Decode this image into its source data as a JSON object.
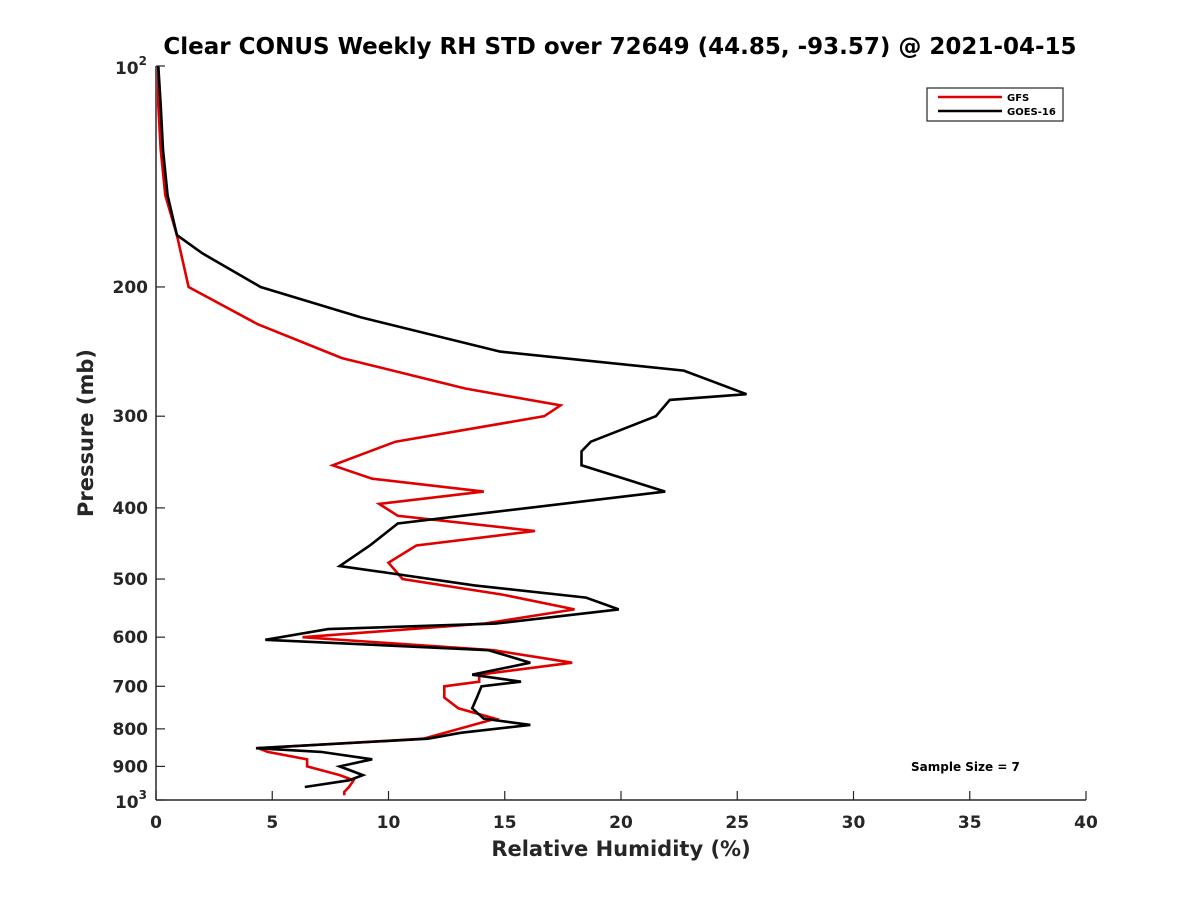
{
  "chart_data": {
    "type": "line",
    "title": "Clear CONUS Weekly RH STD over 72649 (44.85, -93.57) @ 2021-04-15",
    "xlabel": "Relative Humidity (%)",
    "ylabel": "Pressure (mb)",
    "xlim": [
      0,
      40
    ],
    "ylim": [
      100,
      1000
    ],
    "y_scale": "log",
    "y_reversed": true,
    "x_ticks": [
      "0",
      "5",
      "10",
      "15",
      "20",
      "25",
      "30",
      "35",
      "40"
    ],
    "y_ticks": [
      {
        "value": 100,
        "base": "10",
        "exp": "2"
      },
      {
        "value": 200,
        "label": "200"
      },
      {
        "value": 300,
        "label": "300"
      },
      {
        "value": 400,
        "label": "400"
      },
      {
        "value": 500,
        "label": "500"
      },
      {
        "value": 600,
        "label": "600"
      },
      {
        "value": 700,
        "label": "700"
      },
      {
        "value": 800,
        "label": "800"
      },
      {
        "value": 900,
        "label": "900"
      },
      {
        "value": 1000,
        "base": "10",
        "exp": "3"
      }
    ],
    "grid": false,
    "legend_position": "top-right",
    "annotation": "Sample Size = 7",
    "series": [
      {
        "name": "GFS",
        "color": "#e00000",
        "x": [
          0.1,
          0.1,
          0.2,
          0.4,
          0.9,
          1.4,
          4.4,
          8,
          13.3,
          17.4,
          16.7,
          10.3,
          7.6,
          9.3,
          14.1,
          9.6,
          10.4,
          16.3,
          11.2,
          10,
          10.6,
          14.9,
          18,
          14.1,
          6.3,
          14.5,
          17.9,
          13.9,
          13.9,
          12.4,
          12.4,
          13,
          14.6,
          11.5,
          4.4,
          4.8,
          6.5,
          6.5,
          7.9,
          8.5,
          8.3,
          8.1,
          8.1
        ],
        "y": [
          100,
          113,
          130,
          150,
          170,
          200,
          225,
          250,
          275,
          290,
          300,
          325,
          350,
          365,
          380,
          395,
          410,
          430,
          450,
          475,
          500,
          525,
          550,
          575,
          600,
          625,
          650,
          675,
          690,
          700,
          725,
          750,
          775,
          825,
          850,
          860,
          880,
          900,
          925,
          940,
          960,
          975,
          985
        ]
      },
      {
        "name": "GOES-16",
        "color": "#000000",
        "x": [
          0.1,
          0.2,
          0.3,
          0.5,
          0.9,
          2.0,
          4.5,
          8.8,
          14.8,
          22.7,
          25.4,
          22.1,
          21.5,
          18.7,
          18.3,
          18.3,
          21.9,
          10.4,
          9.2,
          7.9,
          9.9,
          13.7,
          18.5,
          19.9,
          14.6,
          7.4,
          4.7,
          14.3,
          16.1,
          13.6,
          15.7,
          14.0,
          13.8,
          13.6,
          14.1,
          16.1,
          13.1,
          11.7,
          4.3,
          7.1,
          9.3,
          7.9,
          8.9,
          8.3,
          6.4
        ],
        "y": [
          100,
          113,
          130,
          150,
          170,
          180,
          200,
          220,
          245,
          260,
          280,
          285,
          300,
          325,
          335,
          350,
          380,
          420,
          450,
          480,
          490,
          510,
          530,
          550,
          575,
          585,
          605,
          625,
          650,
          675,
          690,
          700,
          725,
          750,
          775,
          790,
          810,
          825,
          850,
          860,
          880,
          900,
          925,
          940,
          960
        ]
      }
    ]
  }
}
